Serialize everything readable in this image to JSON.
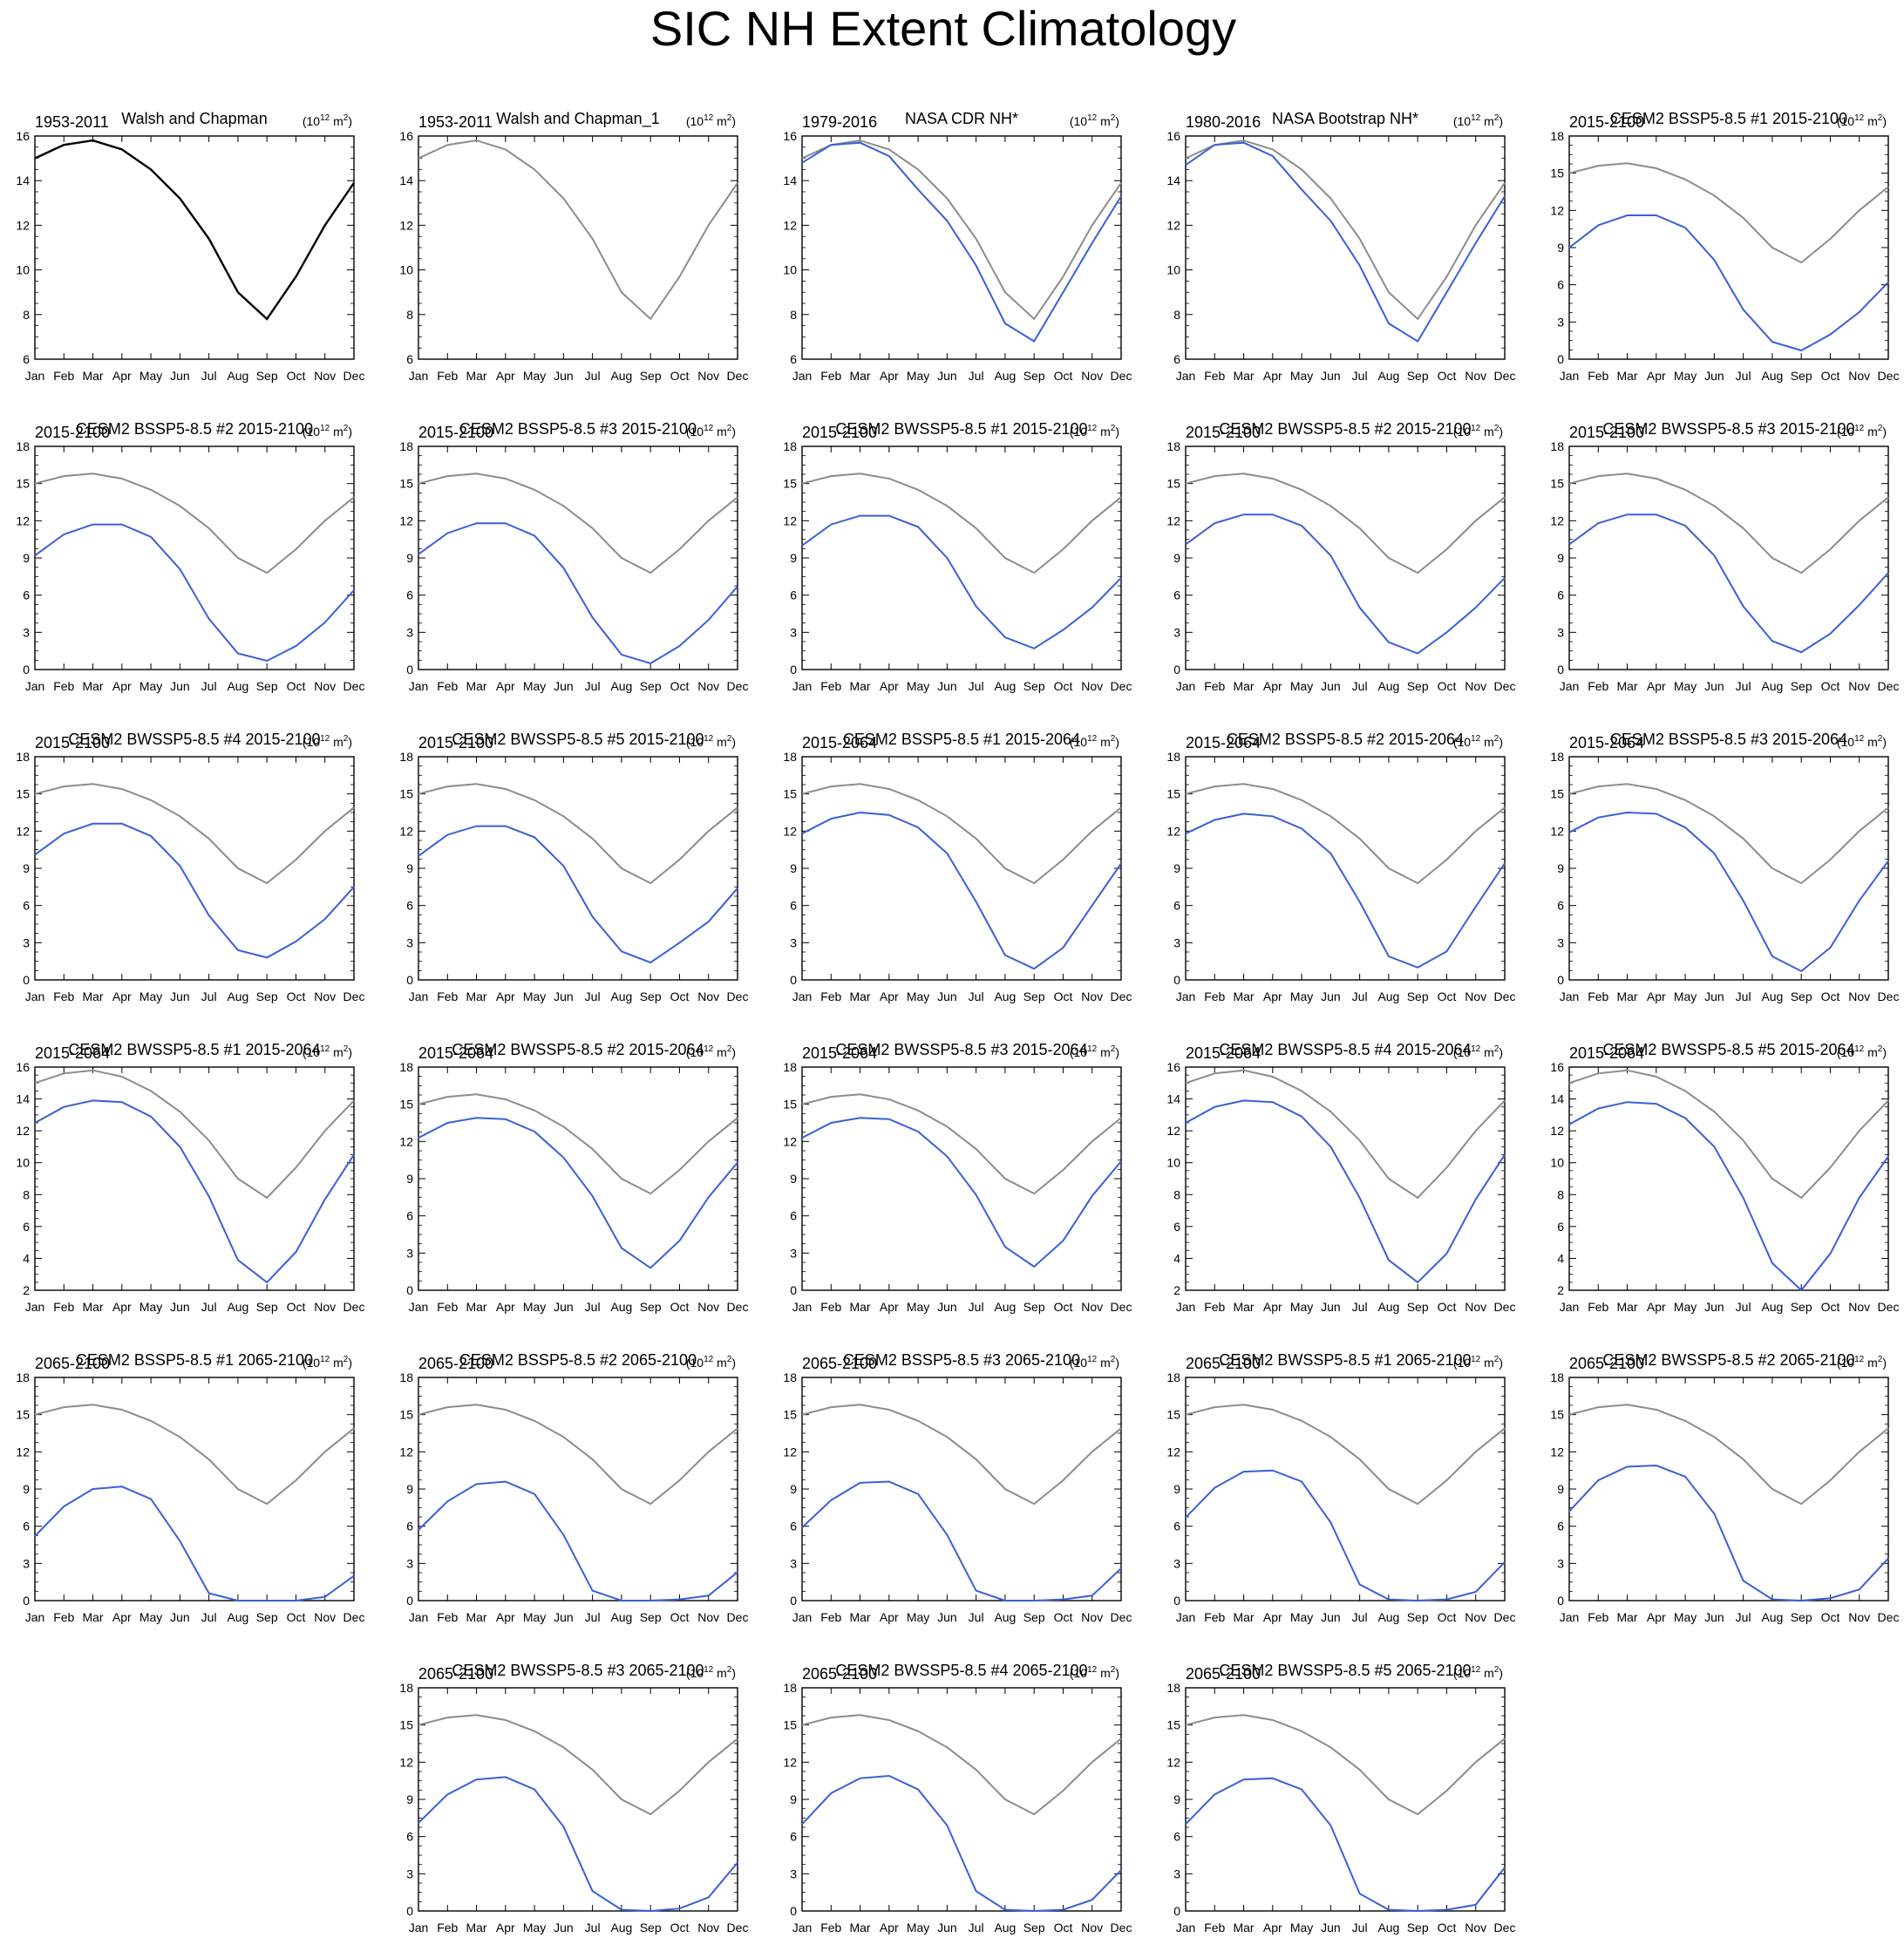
{
  "title": "SIC NH Extent Climatology",
  "months": [
    "Jan",
    "Feb",
    "Mar",
    "Apr",
    "May",
    "Jun",
    "Jul",
    "Aug",
    "Sep",
    "Oct",
    "Nov",
    "Dec"
  ],
  "unit_label": {
    "base": "(10",
    "exp": "12",
    "rest": " m",
    "sq": "2",
    "close": ")"
  },
  "colors": {
    "obs": "#000000",
    "reference": "#8c8c8c",
    "model": "#3a5fd9"
  },
  "reference_series": [
    15.0,
    15.6,
    15.8,
    15.4,
    14.5,
    13.2,
    11.4,
    9.0,
    7.8,
    9.7,
    12.0,
    13.9
  ],
  "chart_data": [
    {
      "type": "line",
      "left": "1953-2011",
      "center": "Walsh and Chapman",
      "right": "",
      "ylim": [
        6,
        16
      ],
      "yticks": [
        6,
        8,
        10,
        12,
        14,
        16
      ],
      "main_color": "obs",
      "show_reference": false,
      "values": [
        15.0,
        15.6,
        15.8,
        15.4,
        14.5,
        13.2,
        11.4,
        9.0,
        7.8,
        9.7,
        12.0,
        13.9
      ]
    },
    {
      "type": "line",
      "left": "1953-2011",
      "center": "Walsh and Chapman_1",
      "right": "",
      "ylim": [
        6,
        16
      ],
      "yticks": [
        6,
        8,
        10,
        12,
        14,
        16
      ],
      "main_color": "reference",
      "show_reference": false,
      "values": [
        15.0,
        15.6,
        15.8,
        15.4,
        14.5,
        13.2,
        11.4,
        9.0,
        7.8,
        9.7,
        12.0,
        13.9
      ]
    },
    {
      "type": "line",
      "left": "1979-2016",
      "center": "NASA CDR NH*",
      "right": "",
      "ylim": [
        6,
        16
      ],
      "yticks": [
        6,
        8,
        10,
        12,
        14,
        16
      ],
      "main_color": "model",
      "show_reference": true,
      "values": [
        14.8,
        15.6,
        15.7,
        15.1,
        13.6,
        12.2,
        10.2,
        7.6,
        6.8,
        9.0,
        11.2,
        13.3
      ]
    },
    {
      "type": "line",
      "left": "1980-2016",
      "center": "NASA Bootstrap NH*",
      "right": "",
      "ylim": [
        6,
        16
      ],
      "yticks": [
        6,
        8,
        10,
        12,
        14,
        16
      ],
      "main_color": "model",
      "show_reference": true,
      "values": [
        14.7,
        15.6,
        15.7,
        15.1,
        13.6,
        12.2,
        10.2,
        7.6,
        6.8,
        9.0,
        11.2,
        13.3
      ]
    },
    {
      "type": "line",
      "left": "2015-2100",
      "center": "CESM2 BSSP5-8.5 #1 2015-2100",
      "right": "",
      "ylim": [
        0,
        18
      ],
      "yticks": [
        0,
        3,
        6,
        9,
        12,
        15,
        18
      ],
      "main_color": "model",
      "show_reference": true,
      "values": [
        9.0,
        10.8,
        11.6,
        11.6,
        10.6,
        8.0,
        4.0,
        1.4,
        0.7,
        2.0,
        3.8,
        6.2
      ]
    },
    {
      "type": "line",
      "left": "2015-2100",
      "center": "CESM2 BSSP5-8.5 #2 2015-2100",
      "right": "",
      "ylim": [
        0,
        18
      ],
      "yticks": [
        0,
        3,
        6,
        9,
        12,
        15,
        18
      ],
      "main_color": "model",
      "show_reference": true,
      "values": [
        9.2,
        10.9,
        11.7,
        11.7,
        10.7,
        8.1,
        4.1,
        1.3,
        0.7,
        1.9,
        3.8,
        6.4
      ]
    },
    {
      "type": "line",
      "left": "2015-2100",
      "center": "CESM2 BSSP5-8.5 #3 2015-2100",
      "right": "",
      "ylim": [
        0,
        18
      ],
      "yticks": [
        0,
        3,
        6,
        9,
        12,
        15,
        18
      ],
      "main_color": "model",
      "show_reference": true,
      "values": [
        9.3,
        11.0,
        11.8,
        11.8,
        10.8,
        8.2,
        4.2,
        1.2,
        0.5,
        1.9,
        4.0,
        6.7
      ]
    },
    {
      "type": "line",
      "left": "2015-2100",
      "center": "CESM2 BWSSP5-8.5 #1 2015-2100",
      "right": "",
      "ylim": [
        0,
        18
      ],
      "yticks": [
        0,
        3,
        6,
        9,
        12,
        15,
        18
      ],
      "main_color": "model",
      "show_reference": true,
      "values": [
        10.0,
        11.7,
        12.4,
        12.4,
        11.5,
        9.0,
        5.1,
        2.6,
        1.7,
        3.2,
        5.0,
        7.4
      ]
    },
    {
      "type": "line",
      "left": "2015-2100",
      "center": "CESM2 BWSSP5-8.5 #2 2015-2100",
      "right": "",
      "ylim": [
        0,
        18
      ],
      "yticks": [
        0,
        3,
        6,
        9,
        12,
        15,
        18
      ],
      "main_color": "model",
      "show_reference": true,
      "values": [
        10.1,
        11.8,
        12.5,
        12.5,
        11.6,
        9.2,
        5.0,
        2.2,
        1.3,
        3.0,
        5.0,
        7.4
      ]
    },
    {
      "type": "line",
      "left": "2015-2100",
      "center": "CESM2 BWSSP5-8.5 #3 2015-2100",
      "right": "",
      "ylim": [
        0,
        18
      ],
      "yticks": [
        0,
        3,
        6,
        9,
        12,
        15,
        18
      ],
      "main_color": "model",
      "show_reference": true,
      "values": [
        10.1,
        11.8,
        12.5,
        12.5,
        11.6,
        9.2,
        5.1,
        2.3,
        1.4,
        2.9,
        5.2,
        7.8
      ]
    },
    {
      "type": "line",
      "left": "2015-2100",
      "center": "CESM2 BWSSP5-8.5 #4 2015-2100",
      "right": "",
      "ylim": [
        0,
        18
      ],
      "yticks": [
        0,
        3,
        6,
        9,
        12,
        15,
        18
      ],
      "main_color": "model",
      "show_reference": true,
      "values": [
        10.1,
        11.8,
        12.6,
        12.6,
        11.6,
        9.2,
        5.2,
        2.4,
        1.8,
        3.1,
        4.9,
        7.5
      ]
    },
    {
      "type": "line",
      "left": "2015-2100",
      "center": "CESM2 BWSSP5-8.5 #5 2015-2100",
      "right": "",
      "ylim": [
        0,
        18
      ],
      "yticks": [
        0,
        3,
        6,
        9,
        12,
        15,
        18
      ],
      "main_color": "model",
      "show_reference": true,
      "values": [
        10.0,
        11.7,
        12.4,
        12.4,
        11.5,
        9.2,
        5.1,
        2.3,
        1.4,
        3.0,
        4.7,
        7.4
      ]
    },
    {
      "type": "line",
      "left": "2015-2064",
      "center": "CESM2 BSSP5-8.5 #1 2015-2064",
      "right": "",
      "ylim": [
        0,
        18
      ],
      "yticks": [
        0,
        3,
        6,
        9,
        12,
        15,
        18
      ],
      "main_color": "model",
      "show_reference": true,
      "values": [
        11.8,
        13.0,
        13.5,
        13.3,
        12.3,
        10.2,
        6.3,
        2.0,
        0.9,
        2.6,
        6.0,
        9.4
      ]
    },
    {
      "type": "line",
      "left": "2015-2064",
      "center": "CESM2 BSSP5-8.5 #2 2015-2064",
      "right": "",
      "ylim": [
        0,
        18
      ],
      "yticks": [
        0,
        3,
        6,
        9,
        12,
        15,
        18
      ],
      "main_color": "model",
      "show_reference": true,
      "values": [
        11.8,
        12.9,
        13.4,
        13.2,
        12.2,
        10.2,
        6.3,
        1.9,
        1.0,
        2.3,
        5.9,
        9.4
      ]
    },
    {
      "type": "line",
      "left": "2015-2064",
      "center": "CESM2 BSSP5-8.5 #3 2015-2064",
      "right": "",
      "ylim": [
        0,
        18
      ],
      "yticks": [
        0,
        3,
        6,
        9,
        12,
        15,
        18
      ],
      "main_color": "model",
      "show_reference": true,
      "values": [
        11.9,
        13.1,
        13.5,
        13.4,
        12.3,
        10.2,
        6.4,
        1.9,
        0.7,
        2.6,
        6.4,
        9.6
      ]
    },
    {
      "type": "line",
      "left": "2015-2064",
      "center": "CESM2 BWSSP5-8.5 #1 2015-2064",
      "right": "",
      "ylim": [
        2,
        16
      ],
      "yticks": [
        2,
        4,
        6,
        8,
        10,
        12,
        14,
        16
      ],
      "main_color": "model",
      "show_reference": true,
      "values": [
        12.5,
        13.5,
        13.9,
        13.8,
        12.9,
        11.0,
        7.9,
        3.9,
        2.5,
        4.4,
        7.7,
        10.5
      ]
    },
    {
      "type": "line",
      "left": "2015-2064",
      "center": "CESM2 BWSSP5-8.5 #2 2015-2064",
      "right": "",
      "ylim": [
        0,
        18
      ],
      "yticks": [
        0,
        3,
        6,
        9,
        12,
        15,
        18
      ],
      "main_color": "model",
      "show_reference": true,
      "values": [
        12.3,
        13.5,
        13.9,
        13.8,
        12.8,
        10.7,
        7.6,
        3.4,
        1.8,
        4.0,
        7.5,
        10.3
      ]
    },
    {
      "type": "line",
      "left": "2015-2064",
      "center": "CESM2 BWSSP5-8.5 #3 2015-2064",
      "right": "",
      "ylim": [
        0,
        18
      ],
      "yticks": [
        0,
        3,
        6,
        9,
        12,
        15,
        18
      ],
      "main_color": "model",
      "show_reference": true,
      "values": [
        12.3,
        13.5,
        13.9,
        13.8,
        12.8,
        10.8,
        7.7,
        3.5,
        1.9,
        4.0,
        7.6,
        10.4
      ]
    },
    {
      "type": "line",
      "left": "2015-2064",
      "center": "CESM2 BWSSP5-8.5 #4 2015-2064",
      "right": "",
      "ylim": [
        2,
        16
      ],
      "yticks": [
        2,
        4,
        6,
        8,
        10,
        12,
        14,
        16
      ],
      "main_color": "model",
      "show_reference": true,
      "values": [
        12.5,
        13.5,
        13.9,
        13.8,
        12.9,
        11.0,
        7.8,
        3.9,
        2.5,
        4.3,
        7.7,
        10.5
      ]
    },
    {
      "type": "line",
      "left": "2015-2064",
      "center": "CESM2 BWSSP5-8.5 #5 2015-2064",
      "right": "",
      "ylim": [
        2,
        16
      ],
      "yticks": [
        2,
        4,
        6,
        8,
        10,
        12,
        14,
        16
      ],
      "main_color": "model",
      "show_reference": true,
      "values": [
        12.4,
        13.4,
        13.8,
        13.7,
        12.8,
        11.0,
        7.8,
        3.7,
        2.0,
        4.3,
        7.8,
        10.4
      ]
    },
    {
      "type": "line",
      "left": "2065-2100",
      "center": "CESM2 BSSP5-8.5 #1 2065-2100",
      "right": "",
      "ylim": [
        0,
        18
      ],
      "yticks": [
        0,
        3,
        6,
        9,
        12,
        15,
        18
      ],
      "main_color": "model",
      "show_reference": true,
      "values": [
        5.2,
        7.6,
        9.0,
        9.2,
        8.2,
        4.8,
        0.6,
        0.0,
        0.0,
        0.0,
        0.3,
        2.0
      ]
    },
    {
      "type": "line",
      "left": "2065-2100",
      "center": "CESM2 BSSP5-8.5 #2 2065-2100",
      "right": "",
      "ylim": [
        0,
        18
      ],
      "yticks": [
        0,
        3,
        6,
        9,
        12,
        15,
        18
      ],
      "main_color": "model",
      "show_reference": true,
      "values": [
        5.7,
        8.0,
        9.4,
        9.6,
        8.6,
        5.3,
        0.8,
        0.0,
        0.0,
        0.1,
        0.4,
        2.3
      ]
    },
    {
      "type": "line",
      "left": "2065-2100",
      "center": "CESM2 BSSP5-8.5 #3 2065-2100",
      "right": "",
      "ylim": [
        0,
        18
      ],
      "yticks": [
        0,
        3,
        6,
        9,
        12,
        15,
        18
      ],
      "main_color": "model",
      "show_reference": true,
      "values": [
        5.9,
        8.1,
        9.5,
        9.6,
        8.6,
        5.3,
        0.8,
        0.0,
        0.0,
        0.1,
        0.4,
        2.6
      ]
    },
    {
      "type": "line",
      "left": "2065-2100",
      "center": "CESM2 BWSSP5-8.5 #1 2065-2100",
      "right": "",
      "ylim": [
        0,
        18
      ],
      "yticks": [
        0,
        3,
        6,
        9,
        12,
        15,
        18
      ],
      "main_color": "model",
      "show_reference": true,
      "values": [
        6.7,
        9.1,
        10.4,
        10.5,
        9.6,
        6.3,
        1.3,
        0.1,
        0.0,
        0.1,
        0.7,
        3.1
      ]
    },
    {
      "type": "line",
      "left": "2065-2100",
      "center": "CESM2 BWSSP5-8.5 #2 2065-2100",
      "right": "",
      "ylim": [
        0,
        18
      ],
      "yticks": [
        0,
        3,
        6,
        9,
        12,
        15,
        18
      ],
      "main_color": "model",
      "show_reference": true,
      "values": [
        7.2,
        9.7,
        10.8,
        10.9,
        10.0,
        7.0,
        1.6,
        0.1,
        0.0,
        0.2,
        0.9,
        3.4
      ]
    },
    {
      "type": "line",
      "left": "2065-2100",
      "center": "CESM2 BWSSP5-8.5 #3 2065-2100",
      "right": "",
      "ylim": [
        0,
        18
      ],
      "yticks": [
        0,
        3,
        6,
        9,
        12,
        15,
        18
      ],
      "main_color": "model",
      "show_reference": true,
      "values": [
        7.1,
        9.4,
        10.6,
        10.8,
        9.8,
        6.8,
        1.6,
        0.1,
        0.0,
        0.2,
        1.1,
        3.9
      ]
    },
    {
      "type": "line",
      "left": "2065-2100",
      "center": "CESM2 BWSSP5-8.5 #4 2065-2100",
      "right": "",
      "ylim": [
        0,
        18
      ],
      "yticks": [
        0,
        3,
        6,
        9,
        12,
        15,
        18
      ],
      "main_color": "model",
      "show_reference": true,
      "values": [
        7.0,
        9.5,
        10.7,
        10.9,
        9.8,
        6.9,
        1.6,
        0.1,
        0.0,
        0.1,
        0.9,
        3.3
      ]
    },
    {
      "type": "line",
      "left": "2065-2100",
      "center": "CESM2 BWSSP5-8.5 #5 2065-2100",
      "right": "",
      "ylim": [
        0,
        18
      ],
      "yticks": [
        0,
        3,
        6,
        9,
        12,
        15,
        18
      ],
      "main_color": "model",
      "show_reference": true,
      "values": [
        7.0,
        9.4,
        10.6,
        10.7,
        9.8,
        6.9,
        1.4,
        0.1,
        0.0,
        0.1,
        0.5,
        3.5
      ]
    }
  ]
}
